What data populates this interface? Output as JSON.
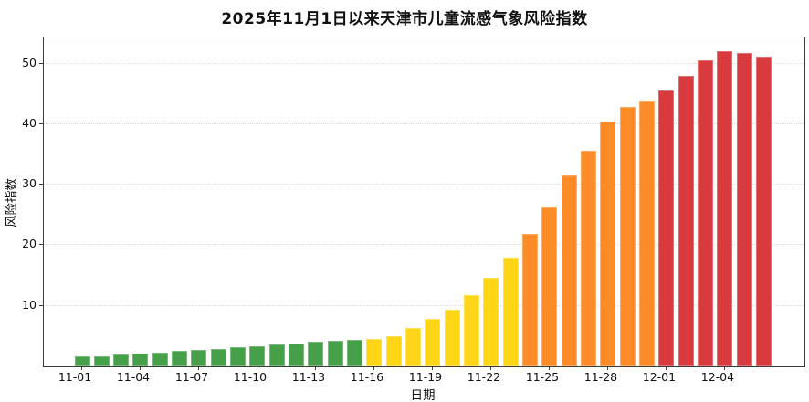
{
  "page": {
    "background": "#ffffff"
  },
  "chart_data": {
    "type": "bar",
    "title": "2025年11月1日以来天津市儿童流感气象风险指数",
    "xlabel": "日期",
    "ylabel": "风险指数",
    "ylim": [
      0,
      54.3
    ],
    "yticks": [
      10,
      20,
      30,
      40,
      50
    ],
    "grid": "horizontal dotted gridlines at each y tick",
    "legend": "none",
    "xtick_labels_shown": [
      "11-01",
      "11-04",
      "11-07",
      "11-10",
      "11-13",
      "11-16",
      "11-19",
      "11-22",
      "11-25",
      "11-28",
      "12-01",
      "12-04"
    ],
    "xtick_step": 3,
    "categories": [
      "11-01",
      "11-02",
      "11-03",
      "11-04",
      "11-05",
      "11-06",
      "11-07",
      "11-08",
      "11-09",
      "11-10",
      "11-11",
      "11-12",
      "11-13",
      "11-14",
      "11-15",
      "11-16",
      "11-17",
      "11-18",
      "11-19",
      "11-20",
      "11-21",
      "11-22",
      "11-23",
      "11-24",
      "11-25",
      "11-26",
      "11-27",
      "11-28",
      "11-29",
      "11-30",
      "12-01",
      "12-02",
      "12-03",
      "12-04",
      "12-05",
      "12-06"
    ],
    "values": [
      1.6,
      1.7,
      1.9,
      2.1,
      2.3,
      2.5,
      2.7,
      2.9,
      3.1,
      3.3,
      3.6,
      3.7,
      4.0,
      4.3,
      4.4,
      4.6,
      5.0,
      6.3,
      7.8,
      9.3,
      11.8,
      14.6,
      18.0,
      21.8,
      26.3,
      31.5,
      35.6,
      40.5,
      42.9,
      43.7,
      45.6,
      48.0,
      50.6,
      52.0,
      51.7,
      51.2
    ],
    "bar_color_names": [
      "green",
      "green",
      "green",
      "green",
      "green",
      "green",
      "green",
      "green",
      "green",
      "green",
      "green",
      "green",
      "green",
      "green",
      "green",
      "yellow",
      "yellow",
      "yellow",
      "yellow",
      "yellow",
      "yellow",
      "yellow",
      "yellow",
      "orange",
      "orange",
      "orange",
      "orange",
      "orange",
      "orange",
      "orange",
      "red",
      "red",
      "red",
      "red",
      "red",
      "red"
    ],
    "colors": {
      "green": "#45A049",
      "yellow": "#FFD517",
      "orange": "#FD8C28",
      "red": "#D83B3E"
    },
    "color_segments": [
      {
        "hex": "#45A049",
        "from": "11-01",
        "to": "11-15"
      },
      {
        "hex": "#FFD517",
        "from": "11-16",
        "to": "11-23"
      },
      {
        "hex": "#FD8C28",
        "from": "11-24",
        "to": "11-30"
      },
      {
        "hex": "#D83B3E",
        "from": "12-01",
        "to": "12-06"
      }
    ],
    "axis_color": "#3c3c3c",
    "gridline_color": "#d9d9d9"
  }
}
